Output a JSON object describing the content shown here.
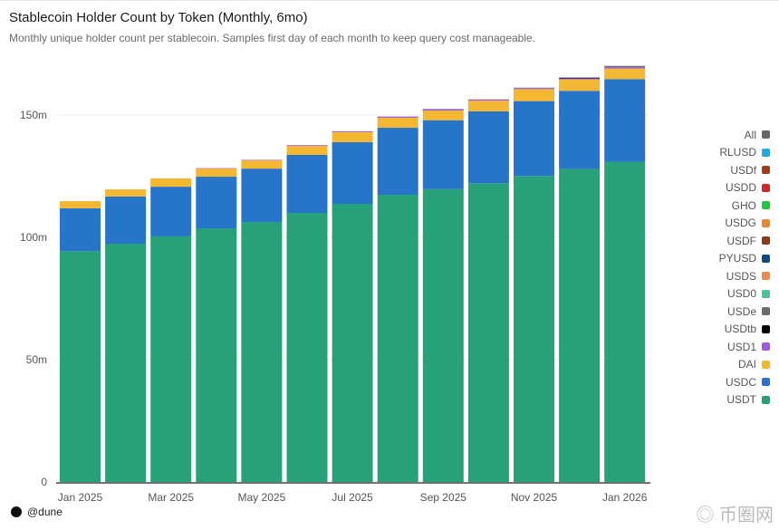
{
  "header": {
    "title": "Stablecoin Holder Count by Token (Monthly, 6mo)",
    "subtitle": "Monthly unique holder count per stablecoin. Samples first day of each month to keep query cost manageable."
  },
  "footer": {
    "brand": "@dune"
  },
  "watermark": "币圈网 ALIBTC.COM",
  "chart_data": {
    "type": "bar",
    "stacked": true,
    "title": "",
    "xlabel": "",
    "ylabel": "",
    "categories": [
      "Jan 2025",
      "Feb 2025",
      "Mar 2025",
      "Apr 2025",
      "May 2025",
      "Jun 2025",
      "Jul 2025",
      "Aug 2025",
      "Sep 2025",
      "Oct 2025",
      "Nov 2025",
      "Dec 2025",
      "Jan 2026"
    ],
    "xtick_labels": [
      "Jan 2025",
      "",
      "Mar 2025",
      "",
      "May 2025",
      "",
      "Jul 2025",
      "",
      "Sep 2025",
      "",
      "Nov 2025",
      "",
      "Jan 2026"
    ],
    "ylim": [
      0,
      175000000
    ],
    "yticks": [
      {
        "value": 0,
        "label": "0"
      },
      {
        "value": 50000000,
        "label": "50m"
      },
      {
        "value": 100000000,
        "label": "100m"
      },
      {
        "value": 150000000,
        "label": "150m"
      }
    ],
    "grid": true,
    "legend_placement": "right",
    "series": [
      {
        "name": "USDT",
        "color": "#27a17a",
        "values": [
          94.4,
          97.4,
          100.4,
          103.7,
          106.3,
          110,
          113.7,
          117.4,
          119.7,
          122.1,
          125.1,
          128,
          130.9
        ]
      },
      {
        "name": "USDC",
        "color": "#2775ca",
        "values": [
          17.5,
          19.3,
          20.3,
          21.1,
          21.8,
          23.7,
          25.2,
          27.4,
          28.2,
          29.4,
          30.6,
          31.9,
          33.8
        ]
      },
      {
        "name": "DAI",
        "color": "#f4b731",
        "values": [
          2.9,
          2.9,
          3.4,
          3.3,
          3.4,
          3.7,
          4.1,
          4.1,
          3.9,
          4.4,
          4.9,
          4.7,
          4.3
        ]
      },
      {
        "name": "USD1",
        "color": "#a15be0",
        "values": [
          0,
          0,
          0,
          0.2,
          0.2,
          0.3,
          0.3,
          0.4,
          0.5,
          0.4,
          0.4,
          0.4,
          0.5
        ]
      },
      {
        "name": "USDtb",
        "color": "#000000",
        "values": [
          0,
          0,
          0,
          0,
          0,
          0,
          0,
          0,
          0,
          0,
          0,
          0.2,
          0
        ]
      },
      {
        "name": "USDe",
        "color": "#6b6b6b",
        "values": [
          0,
          0,
          0,
          0,
          0,
          0,
          0.1,
          0.1,
          0.2,
          0.1,
          0.2,
          0.2,
          0.6
        ]
      }
    ],
    "value_unit_multiplier": 1000000,
    "legend": [
      {
        "name": "All",
        "color": "#666666"
      },
      {
        "name": "RLUSD",
        "color": "#1eaae7"
      },
      {
        "name": "USDf",
        "color": "#9c3e1e"
      },
      {
        "name": "USDD",
        "color": "#d0272d"
      },
      {
        "name": "GHO",
        "color": "#21c63c"
      },
      {
        "name": "USDG",
        "color": "#e8892f"
      },
      {
        "name": "USDF",
        "color": "#8f3a17"
      },
      {
        "name": "PYUSD",
        "color": "#0d4a86"
      },
      {
        "name": "USDS",
        "color": "#f08a4b"
      },
      {
        "name": "USD0",
        "color": "#4cbf9c"
      },
      {
        "name": "USDe",
        "color": "#6b6b6b"
      },
      {
        "name": "USDtb",
        "color": "#000000"
      },
      {
        "name": "USD1",
        "color": "#a15be0"
      },
      {
        "name": "DAI",
        "color": "#f4b731"
      },
      {
        "name": "USDC",
        "color": "#2775ca"
      },
      {
        "name": "USDT",
        "color": "#27a17a"
      }
    ]
  }
}
